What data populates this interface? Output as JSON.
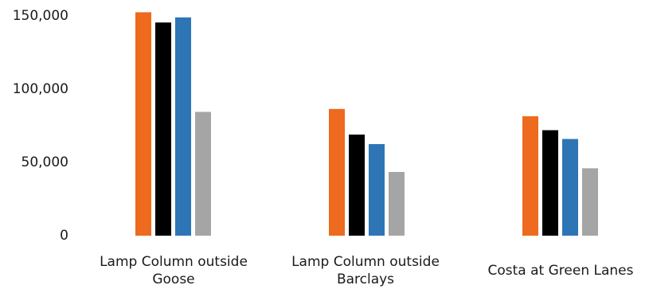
{
  "chart_data": {
    "type": "bar",
    "categories": [
      [
        "Lamp Column outside",
        "Goose"
      ],
      [
        "Lamp Column outside",
        "Barclays"
      ],
      [
        "Costa at Green Lanes"
      ]
    ],
    "series": [
      {
        "color": "#ED6A1F",
        "values": [
          152500,
          86500,
          81500
        ]
      },
      {
        "color": "#000000",
        "values": [
          145500,
          69000,
          72000
        ]
      },
      {
        "color": "#2E75B6",
        "values": [
          149000,
          62500,
          66000
        ]
      },
      {
        "color": "#A5A5A5",
        "values": [
          84500,
          43500,
          46000
        ]
      }
    ],
    "yticks": [
      "0",
      "50,000",
      "100,000",
      "150,000"
    ],
    "ytick_values": [
      0,
      50000,
      100000,
      150000
    ],
    "ylim": [
      0,
      150000
    ],
    "grid": false,
    "legend": false,
    "title": "",
    "xlabel": "",
    "ylabel": ""
  }
}
